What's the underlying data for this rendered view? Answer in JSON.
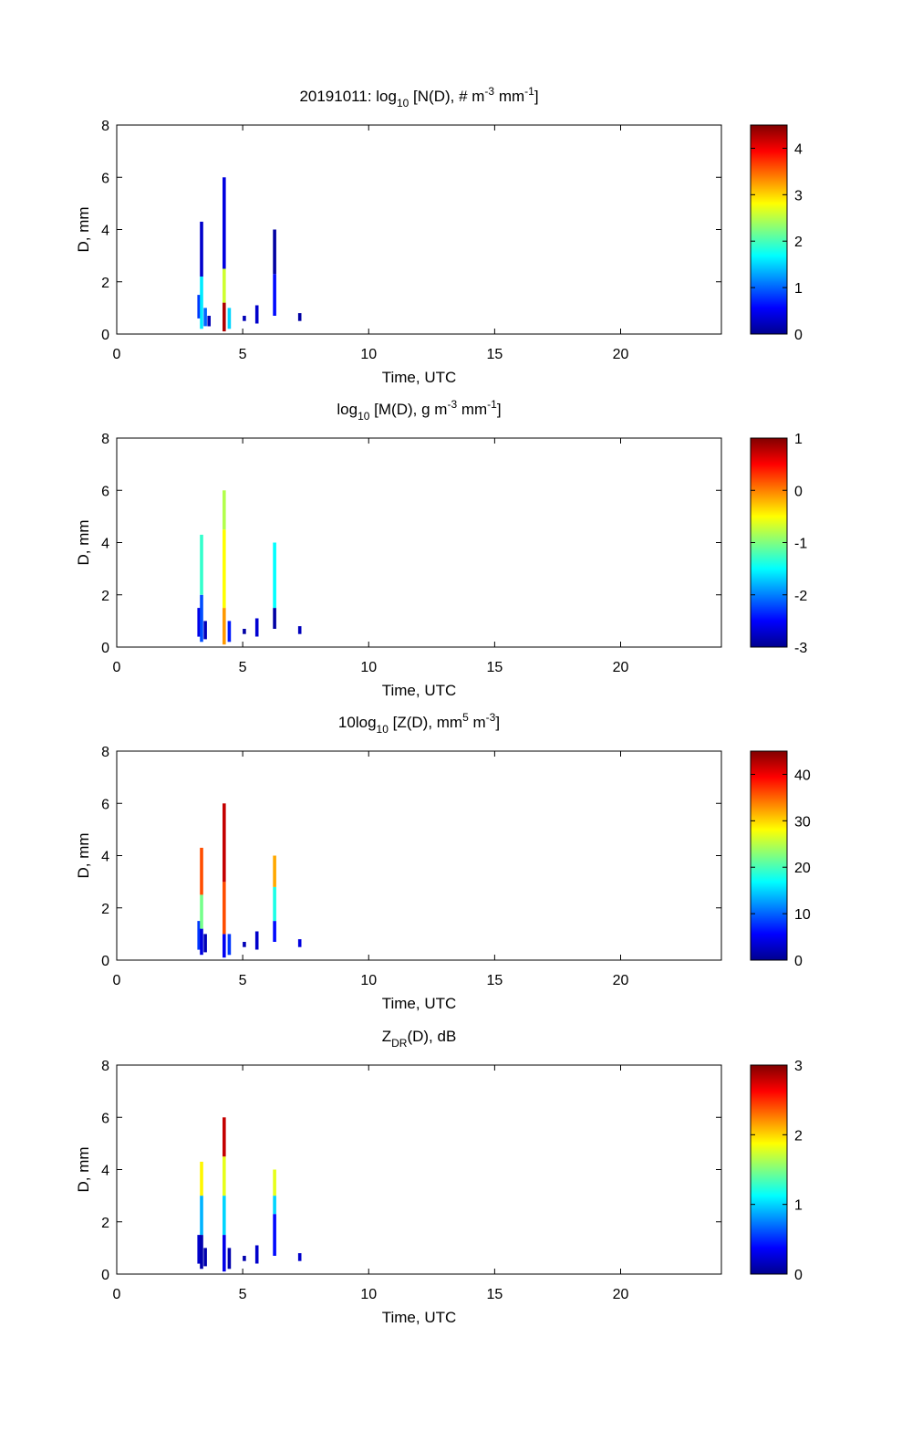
{
  "figure": {
    "date": "20191011",
    "background": "#ffffff",
    "colormap": [
      "#00008f",
      "#0000ff",
      "#0080ff",
      "#00ffff",
      "#80ff80",
      "#ffff00",
      "#ff8000",
      "#ff0000",
      "#800000"
    ]
  },
  "chart_data": [
    {
      "type": "heatmap",
      "title": {
        "prefix": "20191011: log",
        "sub": "10",
        "mid": " [N(D), # m",
        "sup1": "-3",
        "mid2": " mm",
        "sup2": "-1",
        "suffix": "]"
      },
      "xlabel": "Time, UTC",
      "ylabel": "D, mm",
      "xlim": [
        0,
        24
      ],
      "ylim": [
        0,
        8
      ],
      "xticks": [
        0,
        5,
        10,
        15,
        20
      ],
      "yticks": [
        0,
        2,
        4,
        6,
        8
      ],
      "colorbar": {
        "range": [
          0,
          4.5
        ],
        "ticks": [
          0,
          1,
          2,
          3,
          4
        ]
      },
      "cells": [
        {
          "t": 3.2,
          "d": [
            0.6,
            1.5
          ],
          "v": 0.8
        },
        {
          "t": 3.3,
          "d": [
            0.2,
            2.2
          ],
          "v": 1.6
        },
        {
          "t": 3.3,
          "d": [
            2.2,
            4.3
          ],
          "v": 0.3
        },
        {
          "t": 3.45,
          "d": [
            0.3,
            1.0
          ],
          "v": 1.0
        },
        {
          "t": 3.6,
          "d": [
            0.3,
            0.7
          ],
          "v": 0.2
        },
        {
          "t": 4.2,
          "d": [
            0.1,
            1.2
          ],
          "v": 4.3
        },
        {
          "t": 4.2,
          "d": [
            1.2,
            2.5
          ],
          "v": 2.6
        },
        {
          "t": 4.2,
          "d": [
            2.5,
            6.0
          ],
          "v": 0.4
        },
        {
          "t": 4.4,
          "d": [
            0.2,
            1.0
          ],
          "v": 1.5
        },
        {
          "t": 5.0,
          "d": [
            0.5,
            0.7
          ],
          "v": 0.2
        },
        {
          "t": 5.5,
          "d": [
            0.4,
            1.1
          ],
          "v": 0.3
        },
        {
          "t": 6.2,
          "d": [
            0.7,
            2.3
          ],
          "v": 0.6
        },
        {
          "t": 6.2,
          "d": [
            2.3,
            4.0
          ],
          "v": 0.1
        },
        {
          "t": 7.2,
          "d": [
            0.5,
            0.8
          ],
          "v": 0.1
        }
      ]
    },
    {
      "type": "heatmap",
      "title": {
        "prefix": "log",
        "sub": "10",
        "mid": " [M(D), g m",
        "sup1": "-3",
        "mid2": " mm",
        "sup2": "-1",
        "suffix": "]"
      },
      "xlabel": "Time, UTC",
      "ylabel": "D, mm",
      "xlim": [
        0,
        24
      ],
      "ylim": [
        0,
        8
      ],
      "xticks": [
        0,
        5,
        10,
        15,
        20
      ],
      "yticks": [
        0,
        2,
        4,
        6,
        8
      ],
      "colorbar": {
        "range": [
          -3,
          1
        ],
        "ticks": [
          -3,
          -2,
          -1,
          0,
          1
        ]
      },
      "cells": [
        {
          "t": 3.2,
          "d": [
            0.4,
            1.5
          ],
          "v": -2.6
        },
        {
          "t": 3.3,
          "d": [
            0.2,
            2.0
          ],
          "v": -2.2
        },
        {
          "t": 3.3,
          "d": [
            2.0,
            4.3
          ],
          "v": -1.3
        },
        {
          "t": 3.45,
          "d": [
            0.3,
            1.0
          ],
          "v": -2.8
        },
        {
          "t": 4.2,
          "d": [
            0.1,
            1.5
          ],
          "v": -0.1
        },
        {
          "t": 4.2,
          "d": [
            1.5,
            4.5
          ],
          "v": -0.5
        },
        {
          "t": 4.2,
          "d": [
            4.5,
            6.0
          ],
          "v": -0.8
        },
        {
          "t": 4.4,
          "d": [
            0.2,
            1.0
          ],
          "v": -2.4
        },
        {
          "t": 5.0,
          "d": [
            0.5,
            0.7
          ],
          "v": -2.9
        },
        {
          "t": 5.5,
          "d": [
            0.4,
            1.1
          ],
          "v": -2.7
        },
        {
          "t": 6.2,
          "d": [
            0.7,
            1.5
          ],
          "v": -2.9
        },
        {
          "t": 6.2,
          "d": [
            1.5,
            4.0
          ],
          "v": -1.5
        },
        {
          "t": 7.2,
          "d": [
            0.5,
            0.8
          ],
          "v": -2.8
        }
      ]
    },
    {
      "type": "heatmap",
      "title": {
        "prefix": "10log",
        "sub": "10",
        "mid": " [Z(D),  mm",
        "sup1": "5",
        "mid2": " m",
        "sup2": "-3",
        "suffix": "]"
      },
      "xlabel": "Time, UTC",
      "ylabel": "D, mm",
      "xlim": [
        0,
        24
      ],
      "ylim": [
        0,
        8
      ],
      "xticks": [
        0,
        5,
        10,
        15,
        20
      ],
      "yticks": [
        0,
        2,
        4,
        6,
        8
      ],
      "colorbar": {
        "range": [
          0,
          45
        ],
        "ticks": [
          0,
          10,
          20,
          30,
          40
        ]
      },
      "cells": [
        {
          "t": 3.2,
          "d": [
            0.4,
            1.5
          ],
          "v": 8
        },
        {
          "t": 3.3,
          "d": [
            0.2,
            1.2
          ],
          "v": 4
        },
        {
          "t": 3.3,
          "d": [
            1.2,
            2.5
          ],
          "v": 22
        },
        {
          "t": 3.3,
          "d": [
            2.5,
            4.3
          ],
          "v": 36
        },
        {
          "t": 3.45,
          "d": [
            0.3,
            1.0
          ],
          "v": 2
        },
        {
          "t": 4.2,
          "d": [
            0.1,
            1.0
          ],
          "v": 5
        },
        {
          "t": 4.2,
          "d": [
            1.0,
            3.0
          ],
          "v": 36
        },
        {
          "t": 4.2,
          "d": [
            3.0,
            6.0
          ],
          "v": 42
        },
        {
          "t": 4.4,
          "d": [
            0.2,
            1.0
          ],
          "v": 8
        },
        {
          "t": 5.0,
          "d": [
            0.5,
            0.7
          ],
          "v": 2
        },
        {
          "t": 5.5,
          "d": [
            0.4,
            1.1
          ],
          "v": 3
        },
        {
          "t": 6.2,
          "d": [
            0.7,
            1.5
          ],
          "v": 6
        },
        {
          "t": 6.2,
          "d": [
            1.5,
            2.8
          ],
          "v": 18
        },
        {
          "t": 6.2,
          "d": [
            2.8,
            4.0
          ],
          "v": 32
        },
        {
          "t": 7.2,
          "d": [
            0.5,
            0.8
          ],
          "v": 4
        }
      ]
    },
    {
      "type": "heatmap",
      "title": {
        "prefix": "Z",
        "sub": "DR",
        "mid": "(D), dB",
        "sup1": "",
        "mid2": "",
        "sup2": "",
        "suffix": ""
      },
      "xlabel": "Time, UTC",
      "ylabel": "D, mm",
      "xlim": [
        0,
        24
      ],
      "ylim": [
        0,
        8
      ],
      "xticks": [
        0,
        5,
        10,
        15,
        20
      ],
      "yticks": [
        0,
        2,
        4,
        6,
        8
      ],
      "colorbar": {
        "range": [
          0,
          3
        ],
        "ticks": [
          0,
          1,
          2,
          3
        ]
      },
      "cells": [
        {
          "t": 3.2,
          "d": [
            0.4,
            1.5
          ],
          "v": 0.2
        },
        {
          "t": 3.3,
          "d": [
            0.2,
            1.5
          ],
          "v": 0.1
        },
        {
          "t": 3.3,
          "d": [
            1.5,
            3.0
          ],
          "v": 0.9
        },
        {
          "t": 3.3,
          "d": [
            3.0,
            4.3
          ],
          "v": 1.9
        },
        {
          "t": 3.45,
          "d": [
            0.3,
            1.0
          ],
          "v": 0.1
        },
        {
          "t": 4.2,
          "d": [
            0.1,
            1.5
          ],
          "v": 0.3
        },
        {
          "t": 4.2,
          "d": [
            1.5,
            3.0
          ],
          "v": 1.0
        },
        {
          "t": 4.2,
          "d": [
            3.0,
            4.5
          ],
          "v": 1.8
        },
        {
          "t": 4.2,
          "d": [
            4.5,
            6.0
          ],
          "v": 2.8
        },
        {
          "t": 4.4,
          "d": [
            0.2,
            1.0
          ],
          "v": 0.1
        },
        {
          "t": 5.0,
          "d": [
            0.5,
            0.7
          ],
          "v": 0.1
        },
        {
          "t": 5.5,
          "d": [
            0.4,
            1.1
          ],
          "v": 0.2
        },
        {
          "t": 6.2,
          "d": [
            0.7,
            2.3
          ],
          "v": 0.4
        },
        {
          "t": 6.2,
          "d": [
            2.3,
            3.0
          ],
          "v": 1.0
        },
        {
          "t": 6.2,
          "d": [
            3.0,
            4.0
          ],
          "v": 1.8
        },
        {
          "t": 7.2,
          "d": [
            0.5,
            0.8
          ],
          "v": 0.2
        }
      ]
    }
  ]
}
